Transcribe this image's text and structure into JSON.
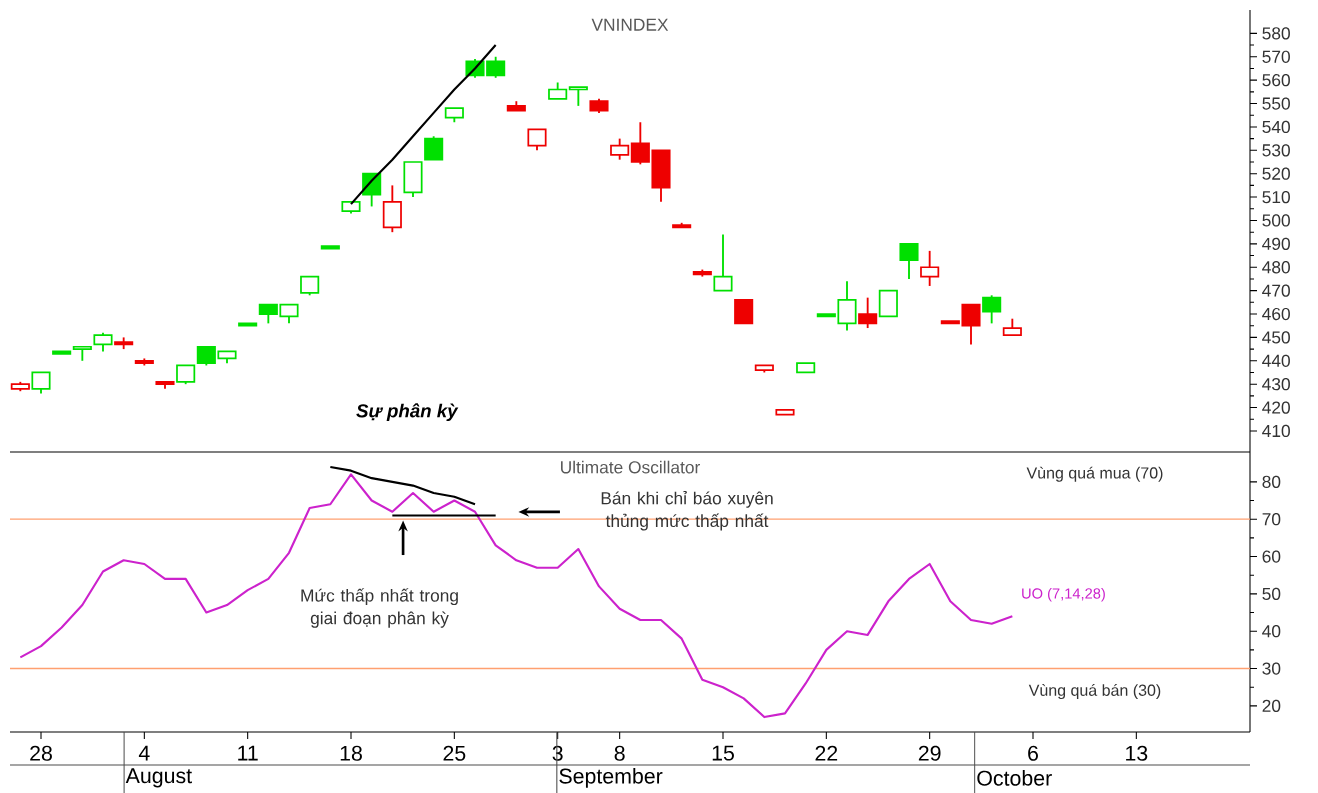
{
  "chart_data": [
    {
      "type": "candlestick",
      "title": "VNINDEX",
      "categories": [
        null,
        "28",
        null,
        null,
        null,
        null,
        "4",
        null,
        null,
        null,
        null,
        "11",
        null,
        null,
        null,
        null,
        "18",
        null,
        null,
        null,
        null,
        "25",
        null,
        null,
        null,
        null,
        "3",
        null,
        null,
        "8",
        null,
        null,
        null,
        null,
        "15",
        null,
        null,
        null,
        null,
        "22",
        null,
        null,
        null,
        null,
        "29",
        null,
        null,
        null,
        null,
        "6",
        null,
        null,
        null,
        null,
        "13",
        null,
        null,
        null,
        null,
        null
      ],
      "ohlc": [
        [
          428,
          431,
          427,
          430
        ],
        [
          428,
          435,
          426,
          435
        ],
        [
          444,
          444,
          443,
          443
        ],
        [
          445,
          446,
          440,
          446
        ],
        [
          447,
          452,
          444,
          451
        ],
        [
          448,
          450,
          445,
          447
        ],
        [
          440,
          441,
          438,
          439
        ],
        [
          431,
          431,
          428,
          430
        ],
        [
          431,
          438,
          430,
          438
        ],
        [
          446,
          446,
          438,
          439
        ],
        [
          441,
          444,
          439,
          444
        ],
        [
          456,
          456,
          455,
          455
        ],
        [
          464,
          464,
          456,
          460
        ],
        [
          459,
          464,
          456,
          464
        ],
        [
          469,
          476,
          468,
          476
        ],
        [
          489,
          489,
          488,
          488
        ],
        [
          504,
          508,
          503,
          508
        ],
        [
          520,
          520,
          506,
          511
        ],
        [
          497,
          515,
          495,
          508
        ],
        [
          512,
          525,
          510,
          525
        ],
        [
          535,
          536,
          526,
          526
        ],
        [
          544,
          548,
          542,
          548
        ],
        [
          568,
          569,
          561,
          562
        ],
        [
          568,
          570,
          561,
          562
        ],
        [
          549,
          551,
          547,
          547
        ],
        [
          532,
          539,
          530,
          539
        ],
        [
          552,
          559,
          552,
          556
        ],
        [
          556,
          557,
          549,
          557
        ],
        [
          551,
          552,
          546,
          547
        ],
        [
          528,
          535,
          526,
          532
        ],
        [
          533,
          542,
          524,
          525
        ],
        [
          530,
          530,
          508,
          514
        ],
        [
          498,
          499,
          497,
          497
        ],
        [
          478,
          479,
          476,
          477
        ],
        [
          470,
          494,
          470,
          476
        ],
        [
          466,
          466,
          456,
          456
        ],
        [
          436,
          438,
          435,
          438
        ],
        [
          417,
          419,
          417,
          419
        ],
        [
          435,
          439,
          435,
          439
        ],
        [
          460,
          460,
          459,
          459
        ],
        [
          456,
          474,
          453,
          466
        ],
        [
          460,
          467,
          454,
          456
        ],
        [
          459,
          470,
          459,
          470
        ],
        [
          490,
          490,
          475,
          483
        ],
        [
          476,
          487,
          472,
          480
        ],
        [
          457,
          457,
          456,
          456
        ],
        [
          464,
          464,
          447,
          455
        ],
        [
          467,
          468,
          456,
          461
        ],
        [
          451,
          458,
          451,
          454
        ],
        null,
        null,
        null,
        null,
        null,
        null,
        null,
        null,
        null,
        null,
        null
      ],
      "colors": [
        "#ee0000",
        "#00e000",
        "#00e000",
        "#00e000",
        "#00e000",
        "#ee0000",
        "#ee0000",
        "#ee0000",
        "#00e000",
        "#00e000",
        "#00e000",
        "#00e000",
        "#00e000",
        "#00e000",
        "#00e000",
        "#00e000",
        "#00e000",
        "#00e000",
        "#ee0000",
        "#00e000",
        "#00e000",
        "#00e000",
        "#00e000",
        "#00e000",
        "#ee0000",
        "#ee0000",
        "#00e000",
        "#00e000",
        "#ee0000",
        "#ee0000",
        "#ee0000",
        "#ee0000",
        "#ee0000",
        "#ee0000",
        "#00e000",
        "#ee0000",
        "#ee0000",
        "#ee0000",
        "#00e000",
        "#00e000",
        "#00e000",
        "#ee0000",
        "#00e000",
        "#00e000",
        "#ee0000",
        "#ee0000",
        "#ee0000",
        "#00e000",
        "#ee0000",
        null,
        null,
        null,
        null,
        null,
        null,
        null,
        null,
        null,
        null,
        null
      ],
      "series": [
        {
          "type": "line",
          "color": "#000000",
          "values": [
            null,
            null,
            null,
            null,
            null,
            null,
            null,
            null,
            null,
            null,
            null,
            null,
            null,
            null,
            null,
            null,
            507,
            517,
            526,
            536,
            546,
            556,
            565,
            575,
            null,
            null,
            null,
            null,
            null,
            null,
            null,
            null,
            null,
            null,
            null,
            null,
            null,
            null,
            null,
            null,
            null,
            null,
            null,
            null,
            null,
            null,
            null,
            null,
            null,
            null,
            null,
            null,
            null,
            null,
            null,
            null,
            null,
            null,
            null,
            null
          ]
        }
      ],
      "annotations": [
        "Sự phân kỳ"
      ],
      "ylim": [
        401,
        590
      ],
      "yticks": [
        410,
        420,
        430,
        440,
        450,
        460,
        470,
        480,
        490,
        500,
        510,
        520,
        530,
        540,
        550,
        560,
        570,
        580
      ],
      "tick_labels": "y"
    },
    {
      "type": "line",
      "title": "Ultimate Oscillator",
      "categories": [
        null,
        "28",
        null,
        null,
        null,
        null,
        "4",
        null,
        null,
        null,
        null,
        "11",
        null,
        null,
        null,
        null,
        "18",
        null,
        null,
        null,
        null,
        "25",
        null,
        null,
        null,
        null,
        "3",
        null,
        null,
        "8",
        null,
        null,
        null,
        null,
        "15",
        null,
        null,
        null,
        null,
        "22",
        null,
        null,
        null,
        null,
        "29",
        null,
        null,
        null,
        null,
        "6",
        null,
        null,
        null,
        null,
        "13",
        null,
        null,
        null,
        null,
        null
      ],
      "series": [
        {
          "name": "UO (7,14,28)",
          "color": "#cc22cc",
          "values": [
            33,
            36,
            41,
            47,
            56,
            59,
            58,
            54,
            54,
            45,
            47,
            51,
            54,
            61,
            73,
            74,
            82,
            75,
            72,
            77,
            72,
            75,
            72,
            63,
            59,
            57,
            57,
            62,
            52,
            46,
            43,
            43,
            38,
            27,
            25,
            22,
            17,
            18,
            26,
            35,
            40,
            39,
            48,
            54,
            58,
            48,
            43,
            42,
            44,
            null,
            null,
            null,
            null,
            null,
            null,
            null,
            null,
            null,
            null,
            null
          ]
        },
        {
          "type": "line",
          "color": "#000000",
          "values": [
            null,
            null,
            null,
            null,
            null,
            null,
            null,
            null,
            null,
            null,
            null,
            null,
            null,
            null,
            null,
            84,
            83,
            81,
            80,
            79,
            77,
            76,
            74,
            null,
            null,
            null,
            null,
            null,
            null,
            null,
            null,
            null,
            null,
            null,
            null,
            null,
            null,
            null,
            null,
            null,
            null,
            null,
            null,
            null,
            null,
            null,
            null,
            null,
            null,
            null,
            null,
            null,
            null,
            null,
            null,
            null,
            null,
            null,
            null,
            null
          ]
        },
        {
          "type": "line",
          "color": "#000000",
          "values": [
            null,
            null,
            null,
            null,
            null,
            null,
            null,
            null,
            null,
            null,
            null,
            null,
            null,
            null,
            null,
            null,
            null,
            null,
            71,
            71,
            71,
            71,
            71,
            71,
            null,
            null,
            null,
            null,
            null,
            null,
            null,
            null,
            null,
            null,
            null,
            null,
            null,
            null,
            null,
            null,
            null,
            null,
            null,
            null,
            null,
            null,
            null,
            null,
            null,
            null,
            null,
            null,
            null,
            null,
            null,
            null,
            null,
            null,
            null,
            null
          ]
        }
      ],
      "ref_lines": [
        {
          "axis": "y",
          "value": 70,
          "label": "Vùng quá mua (70)",
          "color": "#ffa070"
        },
        {
          "axis": "y",
          "value": 30,
          "label": "Vùng quá bán (30)",
          "color": "#ffa070"
        }
      ],
      "annotations": [
        "Mức thấp nhất trong giai đoạn phân kỳ",
        "Bán khi chỉ báo xuyên thủng mức thấp nhất",
        "August",
        "September",
        "October"
      ],
      "ylim": [
        13,
        88
      ],
      "yticks": [
        20,
        30,
        40,
        50,
        60,
        70,
        80
      ]
    }
  ]
}
